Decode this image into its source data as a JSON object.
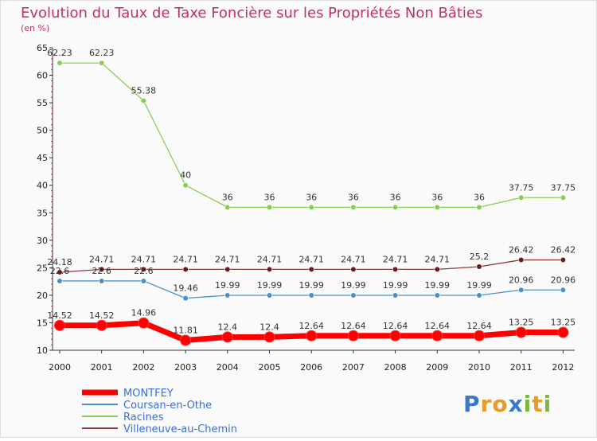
{
  "chart_data": {
    "type": "line",
    "title": "Evolution du Taux de Taxe Foncière sur les Propriétés Non Bâties",
    "subtitle": "(en %)",
    "x": [
      "2000",
      "2001",
      "2002",
      "2003",
      "2004",
      "2005",
      "2006",
      "2007",
      "2008",
      "2009",
      "2010",
      "2011",
      "2012"
    ],
    "yticks": [
      "10",
      "15",
      "20",
      "25",
      "30",
      "35",
      "40",
      "45",
      "50",
      "55",
      "60",
      "65"
    ],
    "ylim": [
      10,
      65
    ],
    "grid": false,
    "legend_position": "bottom-left",
    "series": [
      {
        "name": "Villeneuve-au-Chemin",
        "color": "#8b3a3a",
        "marker": "#6b1a1a",
        "width": 1.3,
        "values": [
          24.18,
          24.71,
          24.71,
          24.71,
          24.71,
          24.71,
          24.71,
          24.71,
          24.71,
          24.71,
          25.2,
          26.42,
          26.42
        ],
        "labels": [
          "24.18",
          "24.71",
          "24.71",
          "24.71",
          "24.71",
          "24.71",
          "24.71",
          "24.71",
          "24.71",
          "24.71",
          "25.2",
          "26.42",
          "26.42"
        ]
      },
      {
        "name": "Coursan-en-Othe",
        "color": "#4a90c8",
        "marker": "#4a90c8",
        "width": 1.3,
        "values": [
          22.6,
          22.6,
          22.6,
          19.46,
          19.99,
          19.99,
          19.99,
          19.99,
          19.99,
          19.99,
          19.99,
          20.96,
          20.96
        ],
        "labels": [
          "22.6",
          "22.6",
          "22.6",
          "19.46",
          "19.99",
          "19.99",
          "19.99",
          "19.99",
          "19.99",
          "19.99",
          "19.99",
          "20.96",
          "20.96"
        ]
      },
      {
        "name": "Racines",
        "color": "#88cc55",
        "marker": "#88cc55",
        "width": 1.3,
        "values": [
          62.23,
          62.23,
          55.38,
          40,
          36,
          36,
          36,
          36,
          36,
          36,
          36,
          37.75,
          37.75
        ],
        "labels": [
          "62.23",
          "62.23",
          "55.38",
          "40",
          "36",
          "36",
          "36",
          "36",
          "36",
          "36",
          "36",
          "37.75",
          "37.75"
        ]
      },
      {
        "name": "MONTFEY",
        "color": "#ff0000",
        "marker": "#ff0000",
        "width": 7,
        "values": [
          14.52,
          14.52,
          14.96,
          11.81,
          12.4,
          12.4,
          12.64,
          12.64,
          12.64,
          12.64,
          12.64,
          13.25,
          13.25
        ],
        "labels": [
          "14.52",
          "14.52",
          "14.96",
          "11.81",
          "12.4",
          "12.4",
          "12.64",
          "12.64",
          "12.64",
          "12.64",
          "12.64",
          "13.25",
          "13.25"
        ]
      }
    ],
    "legend": [
      {
        "name": "MONTFEY",
        "color": "#ff0000",
        "text_color": "#3b6fd8",
        "thick": true
      },
      {
        "name": "Coursan-en-Othe",
        "color": "#4a90c8",
        "text_color": "#3b6fd8",
        "thick": false
      },
      {
        "name": "Racines",
        "color": "#88cc55",
        "text_color": "#3b6fd8",
        "thick": false
      },
      {
        "name": "Villeneuve-au-Chemin",
        "color": "#8b3a3a",
        "text_color": "#3b6fd8",
        "thick": false
      }
    ]
  },
  "logo": {
    "text": "Proxiti",
    "letters": [
      {
        "ch": "P",
        "color": "#3a78c8"
      },
      {
        "ch": "r",
        "color": "#e89a2a"
      },
      {
        "ch": "o",
        "color": "#e89a2a"
      },
      {
        "ch": "x",
        "color": "#3a78c8"
      },
      {
        "ch": "i",
        "color": "#7ab83a"
      },
      {
        "ch": "t",
        "color": "#e89a2a"
      },
      {
        "ch": "i",
        "color": "#7ab83a"
      }
    ]
  }
}
